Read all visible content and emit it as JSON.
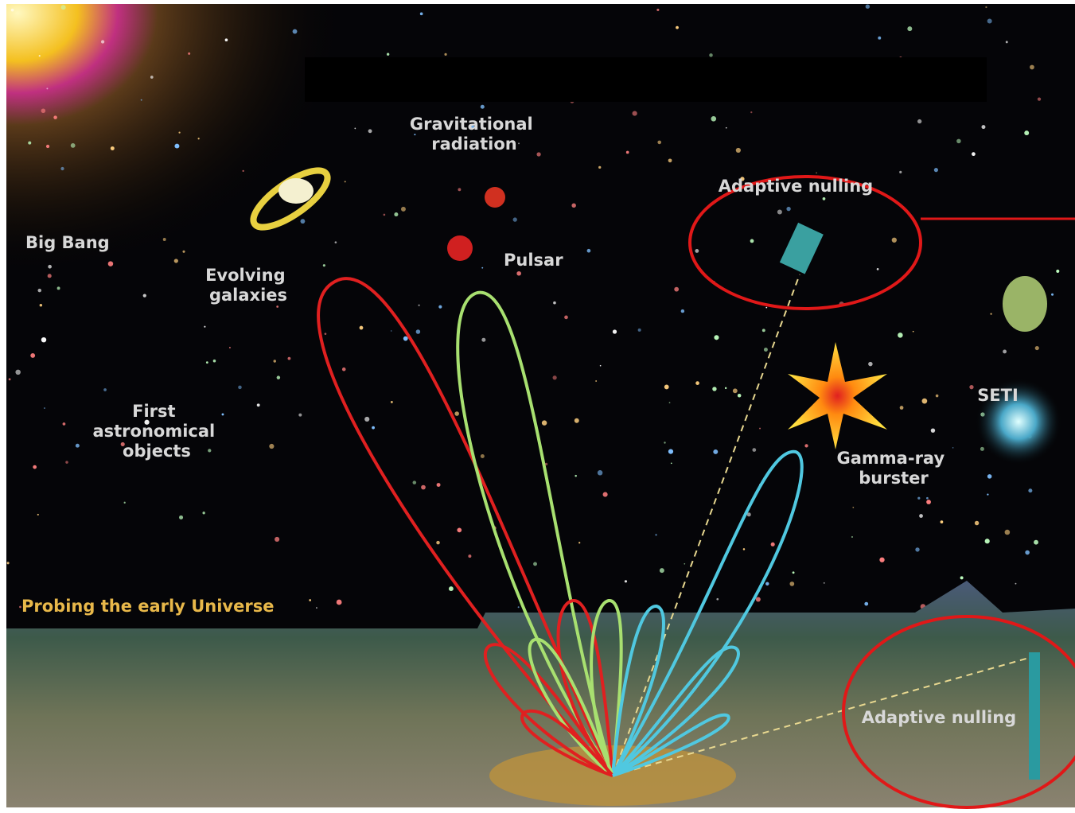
{
  "labels": {
    "gravitational_radiation": [
      "Gravitational",
      "radiation"
    ],
    "big_bang": "Big Bang",
    "evolving_galaxies": [
      "Evolving",
      "galaxies"
    ],
    "pulsar": "Pulsar",
    "adaptive_nulling_sky": "Adaptive nulling",
    "first_objects": [
      "First",
      "astronomical",
      "objects"
    ],
    "seti": "SETI",
    "gamma_ray_burster": [
      "Gamma-ray",
      "burster"
    ],
    "probing": "Probing the early Universe",
    "adaptive_nulling_ground": "Adaptive nulling"
  }
}
